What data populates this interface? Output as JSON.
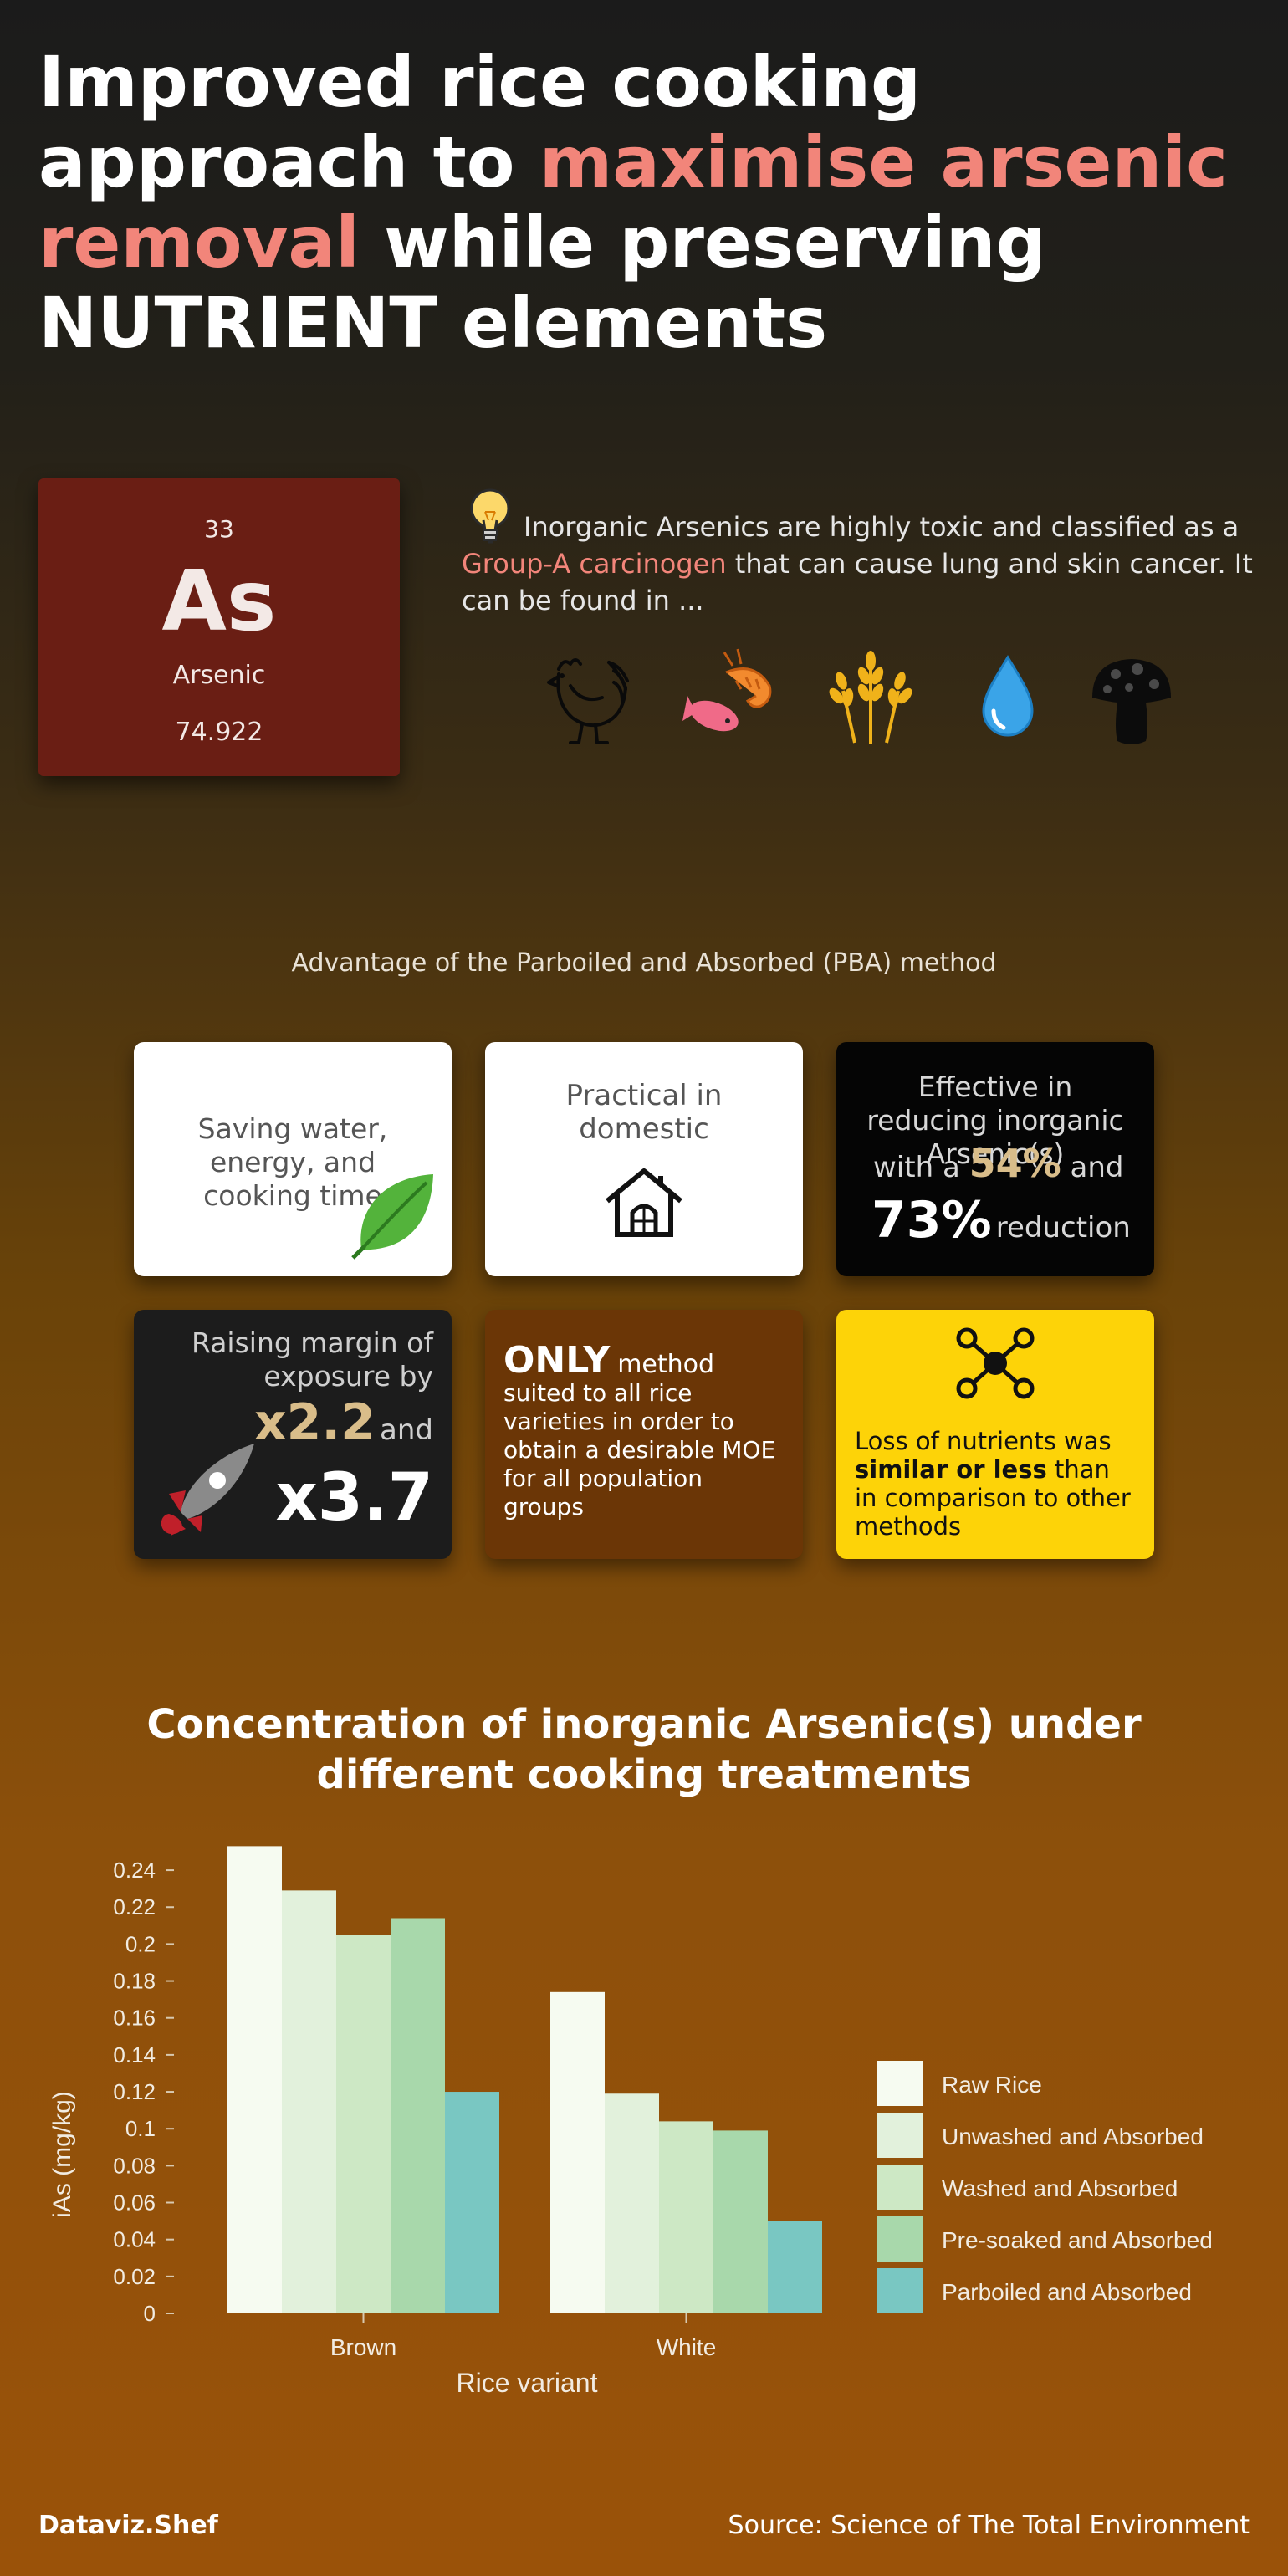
{
  "title": {
    "part1": "Improved rice cooking approach to ",
    "highlight": "maximise arsenic removal",
    "part2": " while preserving NUTRIENT elements"
  },
  "element": {
    "number": "33",
    "symbol": "As",
    "name": "Arsenic",
    "mass": "74.922"
  },
  "intro": {
    "text1": "Inorganic Arsenics are highly toxic and classified as a ",
    "highlight": "Group-A carcinogen",
    "text2": " that can cause lung and skin cancer. It can be found in ..."
  },
  "source_icons": [
    "rooster-icon",
    "seafood-icon",
    "wheat-icon",
    "water-drop-icon",
    "mushroom-icon"
  ],
  "advantages": {
    "title": "Advantage of the Parboiled and Absorbed (PBA) method",
    "card1": "Saving water, energy, and cooking time",
    "card2": "Practical in domestic",
    "card3": {
      "line1": "Effective in reducing inorganic Arsenic(s)",
      "with": "with a",
      "pct1": "54%",
      "and": "and",
      "pct2": "73%",
      "reduction": "reduction"
    },
    "card4": {
      "line1": "Raising margin of exposure by",
      "x1": "x2.2",
      "and": "and",
      "x2": "x3.7"
    },
    "card5": {
      "only": "ONLY",
      "rest1": "method",
      "rest2": "suited to all rice varieties in order to obtain a desirable MOE for all population groups"
    },
    "card6": {
      "text1": "Loss of nutrients was ",
      "bold": "similar or less",
      "text2": " than in comparison to other methods"
    }
  },
  "colors": {
    "accent": "#f2857a",
    "gold": "#d9bd8a",
    "element_bg": "#6a1e14",
    "yellow_card": "#fdd308",
    "brown_card": "#6b3606"
  },
  "chart_data": {
    "type": "bar",
    "title": "Concentration of inorganic Arsenic(s) under different cooking treatments",
    "xlabel": "Rice variant",
    "ylabel": "iAs (mg/kg)",
    "categories": [
      "Brown",
      "White"
    ],
    "ylim": [
      0,
      0.25
    ],
    "yticks": [
      0,
      0.02,
      0.04,
      0.06,
      0.08,
      0.1,
      0.12,
      0.14,
      0.16,
      0.18,
      0.2,
      0.22,
      0.24
    ],
    "legend_position": "right",
    "series": [
      {
        "name": "Raw Rice",
        "color": "#f6fbf1",
        "values": [
          0.253,
          0.174
        ]
      },
      {
        "name": "Unwashed and Absorbed",
        "color": "#e2f1dc",
        "values": [
          0.229,
          0.119
        ]
      },
      {
        "name": "Washed and Absorbed",
        "color": "#cde8c5",
        "values": [
          0.205,
          0.104
        ]
      },
      {
        "name": "Pre-soaked and Absorbed",
        "color": "#a8d8ab",
        "values": [
          0.214,
          0.099
        ]
      },
      {
        "name": "Parboiled and Absorbed",
        "color": "#79c7c2",
        "values": [
          0.12,
          0.05
        ]
      }
    ]
  },
  "footer": {
    "brand": "Dataviz.Shef",
    "source": "Source: Science of The Total Environment"
  }
}
